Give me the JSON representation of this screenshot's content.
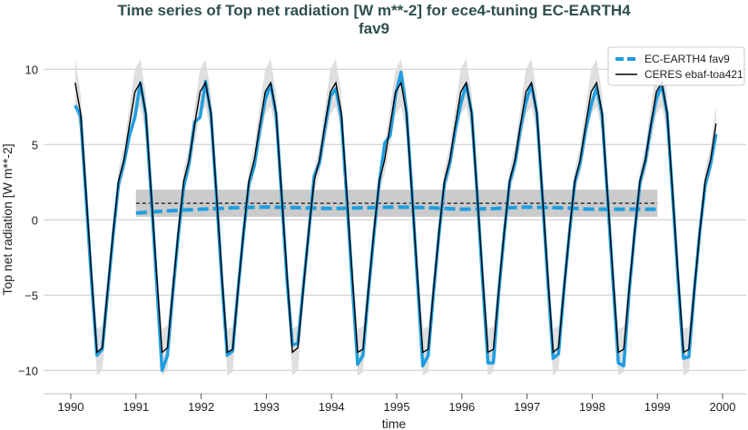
{
  "chart_data": {
    "type": "line",
    "title": "Time series of Top net radiation [W m**-2] for ece4-tuning EC-EARTH4",
    "title_line2": "fav9",
    "xlabel": "time",
    "ylabel": "Top net radiation [W m**-2]",
    "xlim": [
      1989.55,
      2000.4
    ],
    "ylim": [
      -12.0,
      12.0
    ],
    "xticks": [
      "1990",
      "1991",
      "1992",
      "1993",
      "1994",
      "1995",
      "1996",
      "1997",
      "1998",
      "1999",
      "2000"
    ],
    "yticks": [
      {
        "value": 10,
        "label": "10"
      },
      {
        "value": 5,
        "label": "5"
      },
      {
        "value": 0,
        "label": "0"
      },
      {
        "value": -5,
        "label": "−5"
      },
      {
        "value": -10,
        "label": "−10"
      }
    ],
    "grid": "horizontal",
    "legend_position": "top-right",
    "start": "1990-01",
    "frequency": "monthly",
    "series": [
      {
        "name": "EC-EARTH4 fav9",
        "color": "#1f9ee0",
        "style": "thick",
        "values": [
          7.6,
          6.9,
          1.5,
          -4.0,
          -9.0,
          -8.6,
          -4.8,
          -1.0,
          2.4,
          3.8,
          5.6,
          6.8,
          9.1,
          7.0,
          1.6,
          -4.2,
          -10.0,
          -9.0,
          -4.8,
          -1.0,
          2.2,
          3.8,
          6.5,
          6.8,
          9.2,
          7.0,
          1.7,
          -4.0,
          -9.0,
          -8.7,
          -4.6,
          -0.9,
          2.4,
          3.6,
          6.0,
          8.0,
          9.0,
          7.0,
          1.6,
          -4.0,
          -8.3,
          -8.2,
          -4.5,
          -0.9,
          2.9,
          3.8,
          6.1,
          8.2,
          8.7,
          6.8,
          1.5,
          -4.2,
          -9.6,
          -9.0,
          -4.8,
          -1.0,
          2.5,
          5.1,
          5.6,
          8.3,
          9.8,
          7.2,
          1.9,
          -4.0,
          -9.7,
          -9.0,
          -4.8,
          -0.9,
          2.4,
          3.8,
          6.0,
          7.7,
          9.0,
          7.1,
          1.8,
          -4.0,
          -9.5,
          -9.5,
          -4.8,
          -0.9,
          2.5,
          3.8,
          6.1,
          7.8,
          9.0,
          7.1,
          1.7,
          -4.0,
          -9.2,
          -8.9,
          -4.6,
          -0.9,
          2.5,
          3.8,
          6.0,
          7.6,
          8.8,
          7.0,
          1.6,
          -4.0,
          -9.5,
          -9.7,
          -4.8,
          -0.9,
          2.5,
          3.9,
          6.2,
          8.0,
          9.0,
          7.0,
          1.6,
          -4.0,
          -9.2,
          -9.1,
          -4.7,
          -0.8,
          2.3,
          3.7,
          5.7
        ],
        "mean": {
          "x": [
            1991.0,
            1991.5,
            1992.0,
            1992.5,
            1993.0,
            1993.5,
            1994.0,
            1994.5,
            1995.0,
            1995.5,
            1996.0,
            1996.5,
            1997.0,
            1997.5,
            1998.0,
            1998.5,
            1999.0
          ],
          "y": [
            0.45,
            0.6,
            0.7,
            0.8,
            0.85,
            0.8,
            0.75,
            0.8,
            0.85,
            0.8,
            0.7,
            0.75,
            0.85,
            0.8,
            0.7,
            0.7,
            0.7
          ]
        }
      },
      {
        "name": "CERES ebaf-toa421",
        "color": "#000000",
        "style": "thin",
        "values": [
          9.1,
          7.1,
          1.8,
          -3.6,
          -8.8,
          -8.5,
          -4.6,
          -0.8,
          2.6,
          4.0,
          6.3,
          8.5,
          9.1,
          7.1,
          1.8,
          -3.6,
          -8.8,
          -8.5,
          -4.6,
          -0.8,
          2.6,
          4.0,
          6.3,
          8.5,
          9.1,
          7.1,
          1.8,
          -3.6,
          -8.8,
          -8.6,
          -4.6,
          -0.8,
          2.6,
          4.0,
          6.3,
          8.5,
          9.1,
          7.1,
          1.8,
          -3.6,
          -8.8,
          -8.5,
          -4.6,
          -0.8,
          2.6,
          4.0,
          6.3,
          8.5,
          9.1,
          7.1,
          1.8,
          -3.6,
          -8.8,
          -8.6,
          -4.6,
          -0.8,
          2.6,
          4.0,
          6.3,
          8.5,
          9.1,
          7.1,
          1.8,
          -3.6,
          -8.8,
          -8.6,
          -4.6,
          -0.8,
          2.6,
          4.0,
          6.3,
          8.5,
          9.1,
          7.1,
          1.8,
          -3.6,
          -8.8,
          -8.6,
          -4.6,
          -0.8,
          2.6,
          4.0,
          6.3,
          8.5,
          9.1,
          7.1,
          1.8,
          -3.6,
          -8.8,
          -8.5,
          -4.6,
          -0.8,
          2.6,
          4.0,
          6.3,
          8.5,
          9.1,
          7.1,
          1.8,
          -3.6,
          -8.8,
          -8.6,
          -4.6,
          -0.8,
          2.6,
          4.0,
          6.3,
          8.5,
          9.1,
          7.1,
          1.8,
          -3.6,
          -8.8,
          -8.6,
          -4.6,
          -0.8,
          2.6,
          4.0,
          6.4
        ],
        "mean": {
          "x": [
            1991.0,
            1999.0
          ],
          "y": [
            1.1,
            1.1
          ]
        },
        "mean_band": [
          0.2,
          2.0
        ]
      }
    ]
  }
}
